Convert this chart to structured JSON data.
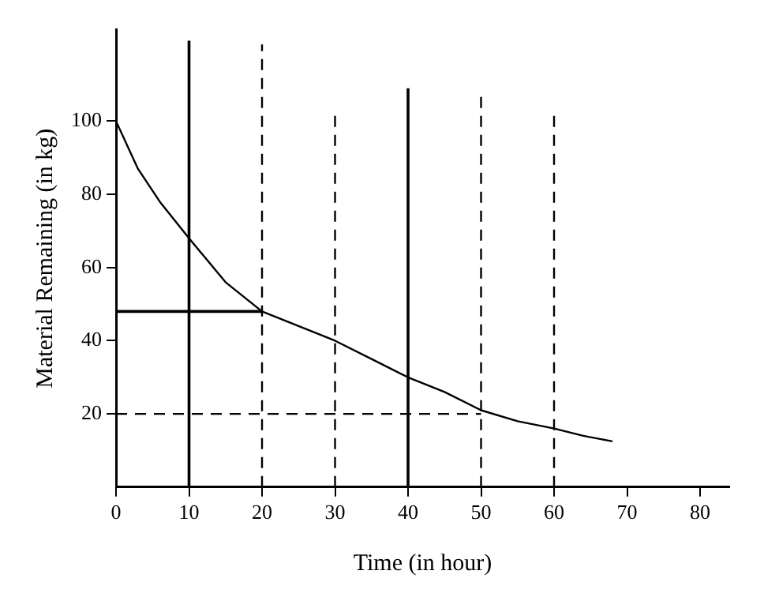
{
  "chart_data": {
    "type": "line",
    "xlabel": "Time (in hour)",
    "ylabel": "Material Remaining (in kg)",
    "xlim": [
      0,
      84
    ],
    "ylim": [
      0,
      125
    ],
    "xticks": [
      0,
      10,
      20,
      30,
      40,
      50,
      60,
      70,
      80
    ],
    "yticks": [
      20,
      40,
      60,
      80,
      100
    ],
    "marker": "none",
    "series": [
      {
        "color": "#000000",
        "line_style": "solid",
        "x": [
          0,
          3,
          6,
          10,
          15,
          20,
          25,
          30,
          35,
          40,
          45,
          50,
          55,
          60,
          64,
          68
        ],
        "values": [
          100,
          87,
          78,
          68,
          56,
          48,
          44,
          40,
          35,
          30,
          26,
          21,
          18,
          16,
          14,
          12.5
        ]
      },
      {
        "color": "#000000",
        "line_style": "solid",
        "x": [
          10,
          10
        ],
        "values": [
          0,
          122
        ]
      },
      {
        "color": "#000000",
        "line_style": "dashed",
        "x": [
          20,
          20
        ],
        "values": [
          0,
          121
        ]
      },
      {
        "color": "#000000",
        "line_style": "dashed",
        "x": [
          30,
          30
        ],
        "values": [
          0,
          102
        ]
      },
      {
        "color": "#000000",
        "line_style": "solid",
        "x": [
          40,
          40
        ],
        "values": [
          0,
          109
        ]
      },
      {
        "color": "#000000",
        "line_style": "dashed",
        "x": [
          50,
          50
        ],
        "values": [
          0,
          107
        ]
      },
      {
        "color": "#000000",
        "line_style": "dashed",
        "x": [
          60,
          60
        ],
        "values": [
          0,
          102
        ]
      },
      {
        "color": "#000000",
        "line_style": "solid",
        "x": [
          0,
          20
        ],
        "values": [
          48,
          48
        ]
      },
      {
        "color": "#000000",
        "line_style": "dashed",
        "x": [
          0,
          50
        ],
        "values": [
          20,
          20
        ]
      }
    ]
  }
}
